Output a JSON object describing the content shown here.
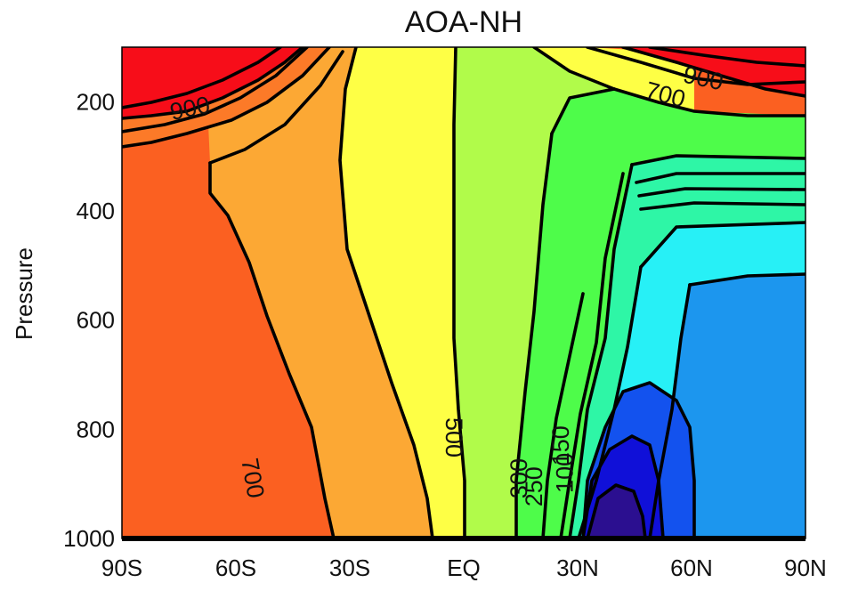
{
  "chart_data": {
    "type": "contour",
    "title": "AOA-NH",
    "xlabel": "",
    "ylabel": "Pressure",
    "x_ticks": [
      "90S",
      "60S",
      "30S",
      "EQ",
      "30N",
      "60N",
      "90N"
    ],
    "x_values": [
      -90,
      -60,
      -30,
      0,
      30,
      60,
      90
    ],
    "y_ticks": [
      "200",
      "400",
      "600",
      "800",
      "1000"
    ],
    "y_values": [
      200,
      400,
      600,
      800,
      1000
    ],
    "xlim": [
      -90,
      90
    ],
    "ylim": [
      1000,
      100
    ],
    "y_inverted": true,
    "colormap": "rainbow",
    "color_bands": [
      {
        "level": "max",
        "color": "#f70d19"
      },
      {
        "level": "high",
        "color": "#fb6021"
      },
      {
        "level": "mid-high",
        "color": "#fca834"
      },
      {
        "level": "mid",
        "color": "#feff45"
      },
      {
        "level": "mid-low",
        "color": "#b1fb4a"
      },
      {
        "level": "low",
        "color": "#4efc4a"
      },
      {
        "level": "lower",
        "color": "#2ef6a6"
      },
      {
        "level": "lower2",
        "color": "#27f0f6"
      },
      {
        "level": "lower3",
        "color": "#1c96ee"
      },
      {
        "level": "lower4",
        "color": "#1352ee"
      },
      {
        "level": "lower5",
        "color": "#1010d8"
      },
      {
        "level": "min",
        "color": "#2b0f90"
      }
    ],
    "contour_labels": [
      {
        "text": "900",
        "lat": -72,
        "p": 215
      },
      {
        "text": "900",
        "lat": 63,
        "p": 160
      },
      {
        "text": "700",
        "lat": 53,
        "p": 190
      },
      {
        "text": "700",
        "lat": -56,
        "p": 890
      },
      {
        "text": "500",
        "lat": -3,
        "p": 815
      },
      {
        "text": "300",
        "lat": 15,
        "p": 890
      },
      {
        "text": "250",
        "lat": 19,
        "p": 905
      },
      {
        "text": "150",
        "lat": 26,
        "p": 830
      },
      {
        "text": "100",
        "lat": 27,
        "p": 880
      }
    ]
  }
}
